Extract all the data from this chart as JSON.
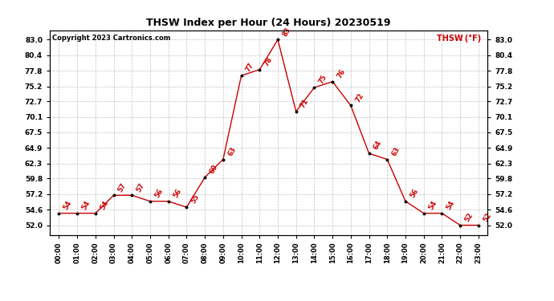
{
  "title": "THSW Index per Hour (24 Hours) 20230519",
  "copyright": "Copyright 2023 Cartronics.com",
  "legend_label": "THSW (°F)",
  "hours": [
    "00:00",
    "01:00",
    "02:00",
    "03:00",
    "04:00",
    "05:00",
    "06:00",
    "07:00",
    "08:00",
    "09:00",
    "10:00",
    "11:00",
    "12:00",
    "13:00",
    "14:00",
    "15:00",
    "16:00",
    "17:00",
    "18:00",
    "19:00",
    "20:00",
    "21:00",
    "22:00",
    "23:00"
  ],
  "values": [
    54,
    54,
    54,
    57,
    57,
    56,
    56,
    55,
    60,
    63,
    77,
    78,
    83,
    71,
    75,
    76,
    72,
    64,
    63,
    56,
    54,
    54,
    52,
    52
  ],
  "line_color": "#cc0000",
  "marker_color": "#000000",
  "label_color": "#cc0000",
  "background_color": "#ffffff",
  "grid_color": "#bbbbbb",
  "title_color": "#000000",
  "copyright_color": "#000000",
  "ylim_min": 50.4,
  "ylim_max": 84.6,
  "yticks": [
    52.0,
    54.6,
    57.2,
    59.8,
    62.3,
    64.9,
    67.5,
    70.1,
    72.7,
    75.2,
    77.8,
    80.4,
    83.0
  ]
}
